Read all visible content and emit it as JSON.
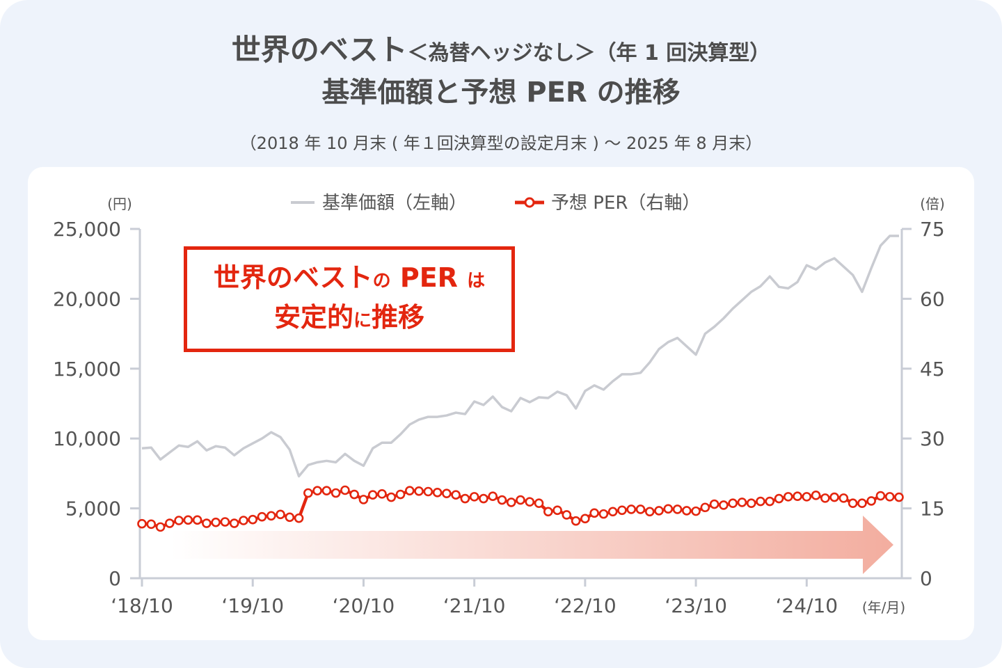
{
  "title": {
    "main": "世界のベスト",
    "bracket": "＜為替ヘッジなし＞",
    "type": "（年 1 回決算型）",
    "line2": "基準価額と予想 PER の推移",
    "period": "（2018 年 10 月末 ( 年１回決算型の設定月末 ) ～ 2025 年 8 月末）"
  },
  "callout": {
    "line1a": "世界のベスト",
    "line1b": "の",
    "line1c": "PER",
    "line1d": "は",
    "line2a": "安定的",
    "line2b": "に",
    "line2c": "推移"
  },
  "chart_data": {
    "type": "line",
    "x": [
      "2018-10",
      "2018-11",
      "2018-12",
      "2019-01",
      "2019-02",
      "2019-03",
      "2019-04",
      "2019-05",
      "2019-06",
      "2019-07",
      "2019-08",
      "2019-09",
      "2019-10",
      "2019-11",
      "2019-12",
      "2020-01",
      "2020-02",
      "2020-03",
      "2020-04",
      "2020-05",
      "2020-06",
      "2020-07",
      "2020-08",
      "2020-09",
      "2020-10",
      "2020-11",
      "2020-12",
      "2021-01",
      "2021-02",
      "2021-03",
      "2021-04",
      "2021-05",
      "2021-06",
      "2021-07",
      "2021-08",
      "2021-09",
      "2021-10",
      "2021-11",
      "2021-12",
      "2022-01",
      "2022-02",
      "2022-03",
      "2022-04",
      "2022-05",
      "2022-06",
      "2022-07",
      "2022-08",
      "2022-09",
      "2022-10",
      "2022-11",
      "2022-12",
      "2023-01",
      "2023-02",
      "2023-03",
      "2023-04",
      "2023-05",
      "2023-06",
      "2023-07",
      "2023-08",
      "2023-09",
      "2023-10",
      "2023-11",
      "2023-12",
      "2024-01",
      "2024-02",
      "2024-03",
      "2024-04",
      "2024-05",
      "2024-06",
      "2024-07",
      "2024-08",
      "2024-09",
      "2024-10",
      "2024-11",
      "2024-12",
      "2025-01",
      "2025-02",
      "2025-03",
      "2025-04",
      "2025-05",
      "2025-06",
      "2025-07",
      "2025-08"
    ],
    "x_tick_labels": [
      "‘18/10",
      "‘19/10",
      "‘20/10",
      "‘21/10",
      "‘22/10",
      "‘23/10",
      "‘24/10"
    ],
    "x_unit_label": "(年/月)",
    "series": [
      {
        "name": "基準価額（左軸）",
        "axis": "left",
        "color": "#c9cbd1",
        "values": [
          9300,
          9350,
          8500,
          9000,
          9500,
          9400,
          9800,
          9150,
          9450,
          9350,
          8800,
          9300,
          9650,
          10000,
          10450,
          10100,
          9200,
          7300,
          8100,
          8300,
          8400,
          8300,
          8900,
          8400,
          8050,
          9300,
          9700,
          9700,
          10300,
          11000,
          11350,
          11550,
          11550,
          11650,
          11850,
          11750,
          12650,
          12400,
          13000,
          12250,
          11950,
          12900,
          12600,
          12950,
          12900,
          13350,
          13100,
          12150,
          13400,
          13800,
          13500,
          14100,
          14600,
          14600,
          14700,
          15450,
          16400,
          16900,
          17200,
          16600,
          16000,
          17500,
          18000,
          18600,
          19300,
          19900,
          20500,
          20900,
          21600,
          20850,
          20750,
          21200,
          22400,
          22100,
          22600,
          22900,
          22300,
          21700,
          20500,
          22200,
          23800,
          24500,
          24500
        ]
      },
      {
        "name": "予想 PER（右軸）",
        "axis": "right",
        "color": "#e3260f",
        "values": [
          11.7,
          11.6,
          11.0,
          11.8,
          12.4,
          12.5,
          12.5,
          11.8,
          12.0,
          12.1,
          11.8,
          12.4,
          12.6,
          13.2,
          13.4,
          13.7,
          13.1,
          12.9,
          18.3,
          18.8,
          18.8,
          18.3,
          18.9,
          18.0,
          16.9,
          17.9,
          18.1,
          17.4,
          18.0,
          18.8,
          18.7,
          18.6,
          18.4,
          18.2,
          17.9,
          17.1,
          17.5,
          17.1,
          17.6,
          16.8,
          16.3,
          16.8,
          16.4,
          16.1,
          14.3,
          14.6,
          13.6,
          12.3,
          12.8,
          14.0,
          13.8,
          14.3,
          14.6,
          14.8,
          14.8,
          14.3,
          14.5,
          14.9,
          14.8,
          14.5,
          14.4,
          15.2,
          15.9,
          15.7,
          16.1,
          16.3,
          16.1,
          16.5,
          16.5,
          17.1,
          17.5,
          17.6,
          17.5,
          17.8,
          17.2,
          17.4,
          17.2,
          16.1,
          16.1,
          16.6,
          17.7,
          17.5,
          17.4
        ]
      }
    ],
    "y_left": {
      "label": "(円)",
      "range": [
        0,
        25000
      ],
      "ticks": [
        0,
        5000,
        10000,
        15000,
        20000,
        25000
      ],
      "tick_labels": [
        "0",
        "5,000",
        "10,000",
        "15,000",
        "20,000",
        "25,000"
      ]
    },
    "y_right": {
      "label": "(倍)",
      "range": [
        0,
        75
      ],
      "ticks": [
        0,
        15,
        30,
        45,
        60,
        75
      ],
      "tick_labels": [
        "0",
        "15",
        "30",
        "45",
        "60",
        "75"
      ]
    },
    "legend": {
      "position": "top-center",
      "items": [
        "基準価額（左軸）",
        "予想 PER（右軸）"
      ]
    },
    "grid": false
  }
}
